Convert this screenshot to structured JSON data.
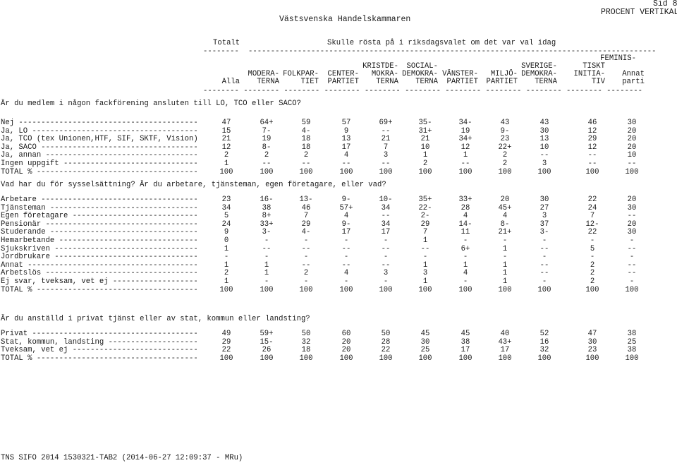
{
  "header": {
    "org": "Västsvenska Handelskammaren",
    "page": "Sid 8",
    "percent": "PROCENT VERTIKALT",
    "totalt": "Totalt",
    "question": "Skulle rösta på i riksdagsvalet om det var val idag",
    "dash_total": "--------",
    "dash_parties": "-------------------------------------------------------------------------------------------",
    "rule": "-------- -------- -------- -------- -------- -------- -------- -------- -------- -------- --------",
    "col_headers": [
      [
        "",
        "",
        "Alla"
      ],
      [
        "",
        "MODERA-",
        "TERNA"
      ],
      [
        "",
        "FOLKPAR-",
        "TIET"
      ],
      [
        "",
        "CENTER-",
        "PARTIET"
      ],
      [
        "KRISTDE-",
        "MOKRA-",
        "TERNA"
      ],
      [
        "SOCIAL-",
        "DEMOKRA-",
        "TERNA"
      ],
      [
        "",
        "VÄNSTER-",
        "PARTIET"
      ],
      [
        "",
        "MILJÖ-",
        "PARTIET"
      ],
      [
        "SVERIGE-",
        "DEMOKRA-",
        "TERNA"
      ],
      [
        "TISKT",
        "INITIA-",
        "TIV"
      ],
      [
        "",
        "Annat",
        "parti"
      ]
    ],
    "feminis_top": "FEMINIS-"
  },
  "sections": [
    {
      "question": "Är du medlem i någon fackförening ansluten till LO, TCO eller SACO?",
      "rows": [
        {
          "label": "Nej ----------------------------------------",
          "values": [
            "47",
            "64+",
            "59",
            "57",
            "69+",
            "35-",
            "34-",
            "43",
            "43",
            "46",
            "30"
          ]
        },
        {
          "label": "Ja, LO -------------------------------------",
          "values": [
            "15",
            "7-",
            "4-",
            "9",
            "--",
            "31+",
            "19",
            "9-",
            "30",
            "12",
            "20"
          ]
        },
        {
          "label": "Ja, TCO (tex Unionen,HTF, SIF, SKTF, Vision)",
          "values": [
            "21",
            "19",
            "18",
            "13",
            "21",
            "21",
            "34+",
            "23",
            "13",
            "29",
            "20"
          ]
        },
        {
          "label": "Ja, SACO -----------------------------------",
          "values": [
            "12",
            "8-",
            "18",
            "17",
            "7",
            "10",
            "12",
            "22+",
            "10",
            "12",
            "20"
          ]
        },
        {
          "label": "Ja, annan ----------------------------------",
          "values": [
            "2",
            "2",
            "2",
            "4",
            "3",
            "1",
            "1",
            "2",
            "--",
            "--",
            "10"
          ]
        },
        {
          "label": "Ingen uppgift ------------------------------",
          "values": [
            "1",
            "--",
            "--",
            "--",
            "--",
            "2",
            "--",
            "2",
            "3",
            "--",
            "--"
          ]
        },
        {
          "label": "TOTAL % ------------------------------------",
          "values": [
            "100",
            "100",
            "100",
            "100",
            "100",
            "100",
            "100",
            "100",
            "100",
            "100",
            "100"
          ]
        }
      ]
    },
    {
      "question": "Vad har du för sysselsättning? Är du arbetare, tjänsteman, egen företagare, eller vad?",
      "rows": [
        {
          "label": "Arbetare -----------------------------------",
          "values": [
            "23",
            "16-",
            "13-",
            "9-",
            "10-",
            "35+",
            "33+",
            "20",
            "30",
            "22",
            "20"
          ]
        },
        {
          "label": "Tjänsteman ---------------------------------",
          "values": [
            "34",
            "38",
            "46",
            "57+",
            "34",
            "22-",
            "28",
            "45+",
            "27",
            "24",
            "30"
          ]
        },
        {
          "label": "Egen företagare ----------------------------",
          "values": [
            "5",
            "8+",
            "7",
            "4",
            "--",
            "2-",
            "4",
            "4",
            "3",
            "7",
            "--"
          ]
        },
        {
          "label": "Pensionär ----------------------------------",
          "values": [
            "24",
            "33+",
            "29",
            "9-",
            "34",
            "29",
            "14-",
            "8-",
            "37",
            "12-",
            "20"
          ]
        },
        {
          "label": "Studerande ---------------------------------",
          "values": [
            "9",
            "3-",
            "4-",
            "17",
            "17",
            "7",
            "11",
            "21+",
            "3-",
            "22",
            "30"
          ]
        },
        {
          "label": "Hemarbetande -------------------------------",
          "values": [
            "0",
            "-",
            "-",
            "-",
            "-",
            "1",
            "-",
            "-",
            "-",
            "-",
            "-"
          ]
        },
        {
          "label": "Sjukskriven --------------------------------",
          "values": [
            "1",
            "--",
            "--",
            "--",
            "--",
            "--",
            "6+",
            "1",
            "--",
            "5",
            "--"
          ]
        },
        {
          "label": "Jordbrukare --------------------------------",
          "values": [
            "-",
            "-",
            "-",
            "-",
            "-",
            "-",
            "-",
            "-",
            "-",
            "-",
            "-"
          ]
        },
        {
          "label": "Annat --------------------------------------",
          "values": [
            "1",
            "1",
            "--",
            "--",
            "--",
            "1",
            "1",
            "1",
            "--",
            "2",
            "--"
          ]
        },
        {
          "label": "Arbetslös ----------------------------------",
          "values": [
            "2",
            "1",
            "2",
            "4",
            "3",
            "3",
            "4",
            "1",
            "--",
            "2",
            "--"
          ]
        },
        {
          "label": "Ej svar, tveksam, vet ej -------------------",
          "values": [
            "1",
            "-",
            "-",
            "-",
            "-",
            "1",
            "-",
            "1",
            "-",
            "2",
            "-"
          ]
        },
        {
          "label": "TOTAL % ------------------------------------",
          "values": [
            "100",
            "100",
            "100",
            "100",
            "100",
            "100",
            "100",
            "100",
            "100",
            "100",
            "100"
          ]
        }
      ]
    },
    {
      "question": "Är du anställd i privat tjänst eller av stat, kommun eller landsting?",
      "rows": [
        {
          "label": "Privat -------------------------------------",
          "values": [
            "49",
            "59+",
            "50",
            "60",
            "50",
            "45",
            "45",
            "40",
            "52",
            "47",
            "38"
          ]
        },
        {
          "label": "Stat, kommun, landsting --------------------",
          "values": [
            "29",
            "15-",
            "32",
            "20",
            "28",
            "30",
            "38",
            "43+",
            "16",
            "30",
            "25"
          ]
        },
        {
          "label": "Tveksam, vet ej ----------------------------",
          "values": [
            "22",
            "26",
            "18",
            "20",
            "22",
            "25",
            "17",
            "17",
            "32",
            "23",
            "38"
          ]
        },
        {
          "label": "TOTAL % ------------------------------------",
          "values": [
            "100",
            "100",
            "100",
            "100",
            "100",
            "100",
            "100",
            "100",
            "100",
            "100",
            "100"
          ]
        }
      ]
    }
  ],
  "footer": "TNS SIFO 2014 1530321-TAB2 (2014-06-27 12:09:37 - MRu)"
}
